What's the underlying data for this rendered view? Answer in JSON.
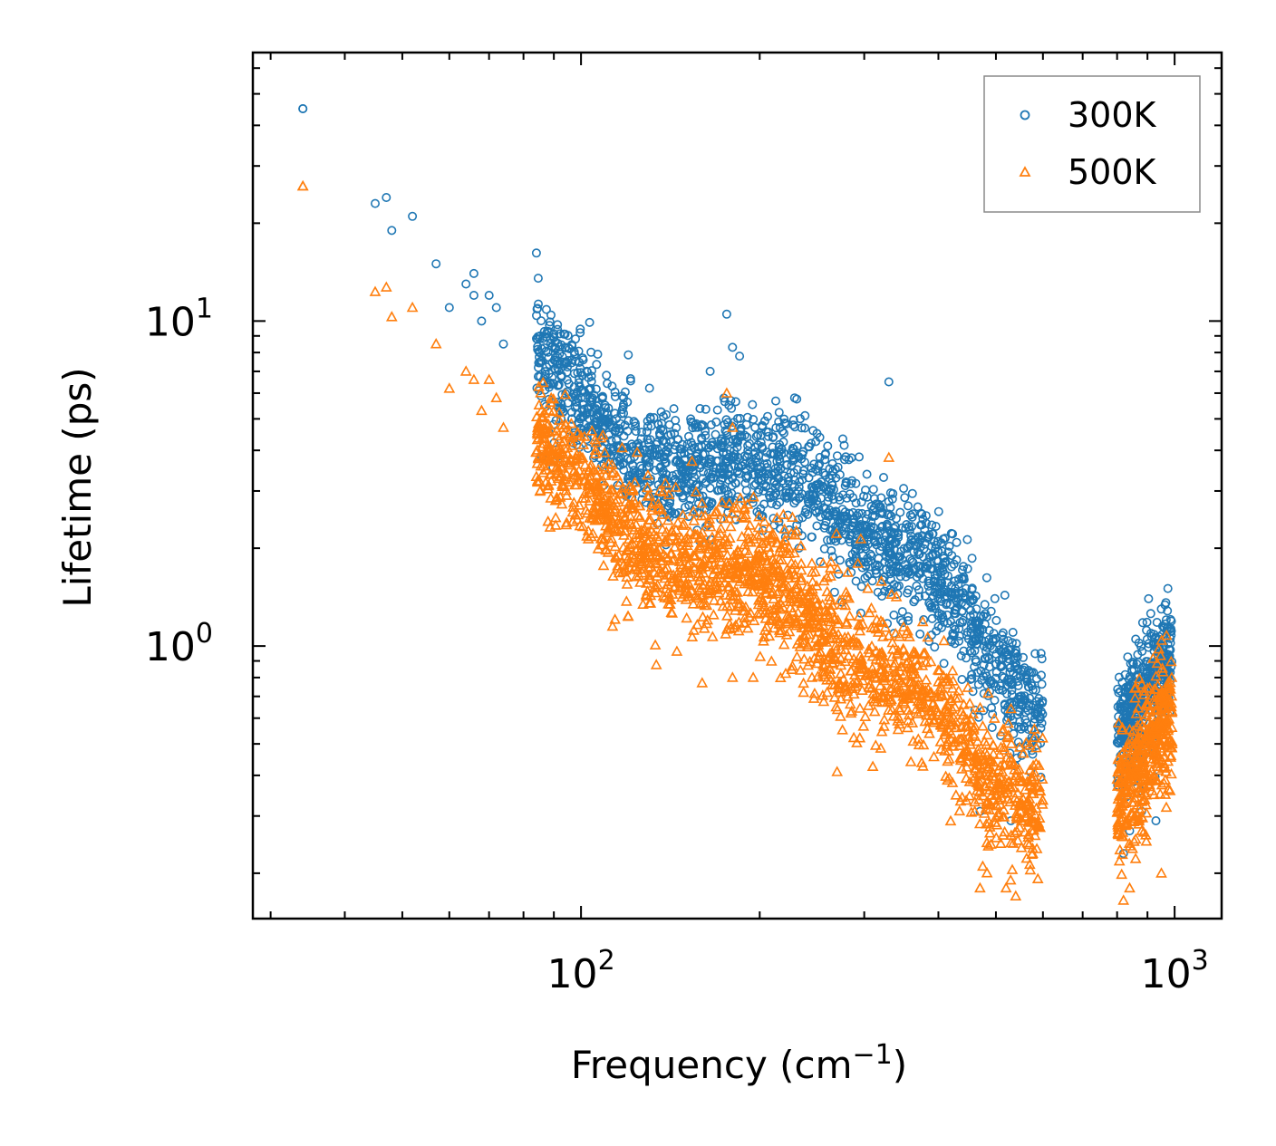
{
  "chart_data": {
    "type": "scatter",
    "title": "",
    "xlabel": "Frequency (cm",
    "xlabel_sup": "−1",
    "xlabel_close": ")",
    "ylabel": "Lifetime (ps)",
    "xscale": "log",
    "yscale": "log",
    "xlim": [
      28,
      1200
    ],
    "ylim": [
      0.145,
      67
    ],
    "x_ticks": [
      {
        "value": 100,
        "base": "10",
        "exp": "2"
      },
      {
        "value": 1000,
        "base": "10",
        "exp": "3"
      }
    ],
    "y_ticks": [
      {
        "value": 1,
        "base": "10",
        "exp": "0"
      },
      {
        "value": 10,
        "base": "10",
        "exp": "1"
      }
    ],
    "legend_position": "upper right",
    "series": [
      {
        "name": "300K",
        "marker": "circle",
        "color": "#1f77b4",
        "anchors": [
          [
            34,
            45
          ],
          [
            45,
            23
          ],
          [
            47,
            24
          ],
          [
            48,
            19
          ],
          [
            52,
            21
          ],
          [
            57,
            15
          ],
          [
            60,
            11
          ],
          [
            64,
            13
          ],
          [
            66,
            12
          ],
          [
            66,
            14
          ],
          [
            68,
            10
          ],
          [
            70,
            12
          ],
          [
            72,
            11
          ],
          [
            74,
            8.5
          ],
          [
            84,
            9.3
          ],
          [
            86,
            7.8
          ],
          [
            90,
            7.0
          ],
          [
            95,
            6.6
          ],
          [
            100,
            5.8
          ],
          [
            105,
            5.0
          ],
          [
            110,
            4.7
          ],
          [
            115,
            4.3
          ],
          [
            120,
            4.1
          ],
          [
            130,
            3.6
          ],
          [
            140,
            3.4
          ],
          [
            150,
            3.3
          ],
          [
            160,
            3.5
          ],
          [
            170,
            3.5
          ],
          [
            180,
            3.6
          ],
          [
            200,
            3.5
          ],
          [
            220,
            3.6
          ],
          [
            240,
            3.3
          ],
          [
            260,
            2.8
          ],
          [
            280,
            2.4
          ],
          [
            300,
            2.3
          ],
          [
            330,
            2.0
          ],
          [
            360,
            1.9
          ],
          [
            400,
            1.6
          ],
          [
            430,
            1.35
          ],
          [
            460,
            1.1
          ],
          [
            500,
            0.85
          ],
          [
            530,
            0.75
          ],
          [
            560,
            0.68
          ],
          [
            600,
            0.6
          ],
          [
            800,
            0.55
          ],
          [
            850,
            0.62
          ],
          [
            900,
            0.72
          ],
          [
            950,
            0.85
          ],
          [
            990,
            0.92
          ]
        ],
        "noise_sigma": 0.09,
        "outliers": [
          [
            34,
            45
          ],
          [
            176,
            10.5
          ],
          [
            180,
            8.3
          ],
          [
            185,
            7.8
          ],
          [
            165,
            7.0
          ],
          [
            330,
            6.5
          ],
          [
            118,
            5.8
          ],
          [
            153,
            5.0
          ],
          [
            190,
            4.8
          ],
          [
            470,
            0.31
          ],
          [
            530,
            0.29
          ],
          [
            820,
            0.23
          ],
          [
            840,
            0.27
          ],
          [
            950,
            1.3
          ],
          [
            940,
            1.05
          ],
          [
            880,
            0.31
          ],
          [
            930,
            0.29
          ],
          [
            860,
            1.05
          ]
        ]
      },
      {
        "name": "500K",
        "marker": "triangle",
        "color": "#ff7f0e",
        "anchors": [
          [
            34,
            26
          ],
          [
            45,
            12.3
          ],
          [
            47,
            12.7
          ],
          [
            48,
            10.3
          ],
          [
            52,
            11.0
          ],
          [
            57,
            8.5
          ],
          [
            60,
            6.2
          ],
          [
            64,
            7.0
          ],
          [
            66,
            6.6
          ],
          [
            68,
            5.3
          ],
          [
            70,
            6.6
          ],
          [
            72,
            5.8
          ],
          [
            74,
            4.7
          ],
          [
            84,
            4.4
          ],
          [
            90,
            3.8
          ],
          [
            100,
            3.2
          ],
          [
            110,
            2.7
          ],
          [
            120,
            2.2
          ],
          [
            140,
            1.8
          ],
          [
            160,
            1.7
          ],
          [
            180,
            1.7
          ],
          [
            200,
            1.6
          ],
          [
            220,
            1.5
          ],
          [
            240,
            1.2
          ],
          [
            260,
            1.0
          ],
          [
            280,
            0.95
          ],
          [
            300,
            0.88
          ],
          [
            330,
            0.8
          ],
          [
            360,
            0.75
          ],
          [
            400,
            0.65
          ],
          [
            430,
            0.55
          ],
          [
            460,
            0.45
          ],
          [
            500,
            0.38
          ],
          [
            530,
            0.35
          ],
          [
            560,
            0.34
          ],
          [
            600,
            0.32
          ],
          [
            800,
            0.33
          ],
          [
            850,
            0.4
          ],
          [
            900,
            0.48
          ],
          [
            950,
            0.55
          ],
          [
            990,
            0.6
          ]
        ],
        "noise_sigma": 0.1,
        "outliers": [
          [
            34,
            26
          ],
          [
            176,
            6.0
          ],
          [
            180,
            4.7
          ],
          [
            330,
            3.8
          ],
          [
            113,
            1.15
          ],
          [
            160,
            0.77
          ],
          [
            180,
            0.8
          ],
          [
            195,
            0.8
          ],
          [
            270,
            0.41
          ],
          [
            470,
            0.18
          ],
          [
            475,
            0.21
          ],
          [
            520,
            0.18
          ],
          [
            540,
            0.17
          ],
          [
            820,
            0.165
          ],
          [
            840,
            0.18
          ],
          [
            950,
            0.2
          ],
          [
            880,
            0.27
          ]
        ]
      }
    ]
  }
}
